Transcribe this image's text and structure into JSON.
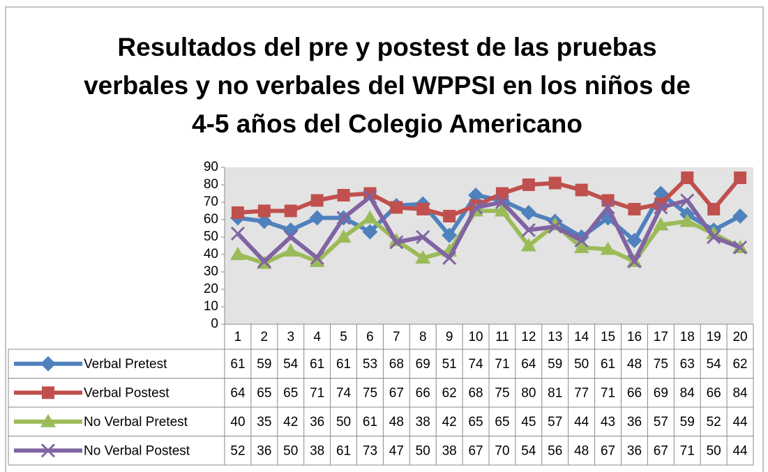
{
  "chart_data": {
    "type": "line",
    "title": "Resultados del pre y postest de las pruebas verbales y no verbales del WPPSI en los niños de  4-5 años del Colegio Americano",
    "categories": [
      "1",
      "2",
      "3",
      "4",
      "5",
      "6",
      "7",
      "8",
      "9",
      "10",
      "11",
      "12",
      "13",
      "14",
      "15",
      "16",
      "17",
      "18",
      "19",
      "20"
    ],
    "ylim": [
      0,
      90
    ],
    "yticks": [
      0,
      10,
      20,
      30,
      40,
      50,
      60,
      70,
      80,
      90
    ],
    "series": [
      {
        "name": "Verbal Pretest",
        "color": "#4f81bd",
        "marker": "diamond",
        "values": [
          61,
          59,
          54,
          61,
          61,
          53,
          68,
          69,
          51,
          74,
          71,
          64,
          59,
          50,
          61,
          48,
          75,
          63,
          54,
          62
        ]
      },
      {
        "name": "Verbal Postest",
        "color": "#c0504d",
        "marker": "square",
        "values": [
          64,
          65,
          65,
          71,
          74,
          75,
          67,
          66,
          62,
          68,
          75,
          80,
          81,
          77,
          71,
          66,
          69,
          84,
          66,
          84
        ]
      },
      {
        "name": "No Verbal Pretest",
        "color": "#9bbb59",
        "marker": "triangle",
        "values": [
          40,
          35,
          42,
          36,
          50,
          61,
          48,
          38,
          42,
          65,
          65,
          45,
          57,
          44,
          43,
          36,
          57,
          59,
          52,
          44
        ]
      },
      {
        "name": "No Verbal Postest",
        "color": "#8064a2",
        "marker": "x",
        "values": [
          52,
          36,
          50,
          38,
          61,
          73,
          47,
          50,
          38,
          67,
          70,
          54,
          56,
          48,
          67,
          36,
          67,
          71,
          50,
          44
        ]
      }
    ]
  }
}
